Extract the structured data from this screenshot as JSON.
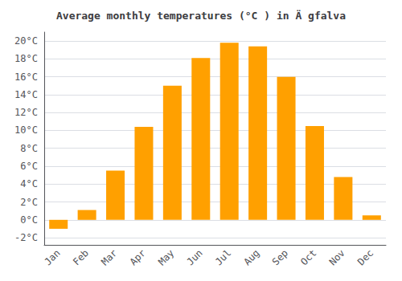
{
  "chart_data": {
    "type": "bar",
    "title": "Average monthly temperatures (°C ) in Ä gfalva",
    "categories": [
      "Jan",
      "Feb",
      "Mar",
      "Apr",
      "May",
      "Jun",
      "Jul",
      "Aug",
      "Sep",
      "Oct",
      "Nov",
      "Dec"
    ],
    "values": [
      -1.0,
      1.1,
      5.5,
      10.4,
      15.0,
      18.1,
      19.8,
      19.4,
      16.0,
      10.5,
      4.8,
      0.5
    ],
    "color": "#FFA000",
    "ylim": [
      -2.8,
      21.0
    ],
    "yticks": [
      {
        "value": -2,
        "label": "-2°C"
      },
      {
        "value": 0,
        "label": "0°C"
      },
      {
        "value": 2,
        "label": "2°C"
      },
      {
        "value": 4,
        "label": "4°C"
      },
      {
        "value": 6,
        "label": "6°C"
      },
      {
        "value": 8,
        "label": "8°C"
      },
      {
        "value": 10,
        "label": "10°C"
      },
      {
        "value": 12,
        "label": "12°C"
      },
      {
        "value": 14,
        "label": "14°C"
      },
      {
        "value": 16,
        "label": "16°C"
      },
      {
        "value": 18,
        "label": "18°C"
      },
      {
        "value": 20,
        "label": "20°C"
      }
    ],
    "grid": true
  }
}
